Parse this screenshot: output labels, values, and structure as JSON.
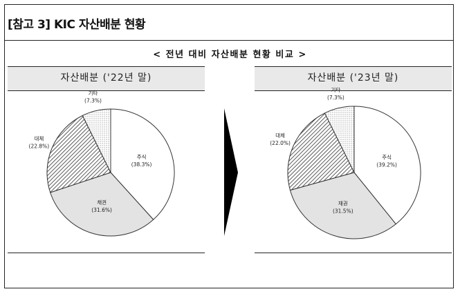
{
  "title": "[참고 3] KIC 자산배분 현황",
  "subtitle": "< 전년 대비 자산배분 현황 비교 >",
  "colors": {
    "stock": "#ffffff",
    "bond": "#e3e3e3",
    "alt": "hatch",
    "other": "dots",
    "stroke": "#333333",
    "arrow": "#000000"
  },
  "chart_data": [
    {
      "type": "pie",
      "title": "자산배분 ('22년 말)",
      "slices": [
        {
          "label": "주식",
          "pct_text": "(38.3%)",
          "value": 38.3
        },
        {
          "label": "채권",
          "pct_text": "(31.6%)",
          "value": 31.6
        },
        {
          "label": "대체",
          "pct_text": "(22.8%)",
          "value": 22.8
        },
        {
          "label": "기타",
          "pct_text": "(7.3%)",
          "value": 7.3
        }
      ]
    },
    {
      "type": "pie",
      "title": "자산배분 ('23년 말)",
      "slices": [
        {
          "label": "주식",
          "pct_text": "(39.2%)",
          "value": 39.2
        },
        {
          "label": "채권",
          "pct_text": "(31.5%)",
          "value": 31.5
        },
        {
          "label": "대체",
          "pct_text": "(22.0%)",
          "value": 22.0
        },
        {
          "label": "기타",
          "pct_text": "(7.3%)",
          "value": 7.3
        }
      ]
    }
  ]
}
